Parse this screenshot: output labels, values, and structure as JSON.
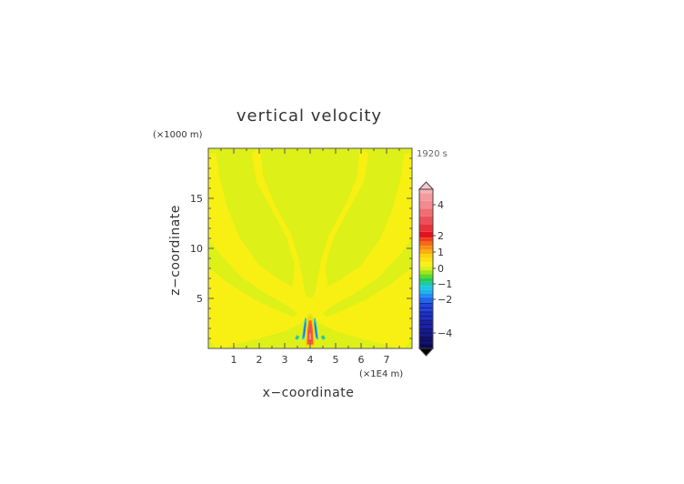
{
  "chart_data": {
    "type": "heatmap",
    "title": "vertical velocity",
    "xlabel": "x−coordinate",
    "ylabel": "z−coordinate",
    "x_unit": "(×1E4 m)",
    "y_unit": "(×1000 m)",
    "time_label": "1920 s",
    "xlim": [
      0,
      8
    ],
    "ylim": [
      0,
      20
    ],
    "x_ticks": [
      "1",
      "2",
      "3",
      "4",
      "5",
      "6",
      "7"
    ],
    "y_ticks": [
      "5",
      "10",
      "15"
    ],
    "grid": false,
    "colorbar": {
      "placement": "right",
      "labels": [
        "4",
        "2",
        "1",
        "0",
        "−1",
        "−2",
        "−4"
      ],
      "levels": [
        {
          "value": 5.0,
          "color": "#f7b0b4"
        },
        {
          "value": 4.5,
          "color": "#f4999d"
        },
        {
          "value": 4.0,
          "color": "#f48a8f"
        },
        {
          "value": 3.5,
          "color": "#f06d72"
        },
        {
          "value": 3.0,
          "color": "#ec5056"
        },
        {
          "value": 2.5,
          "color": "#e8323a"
        },
        {
          "value": 2.0,
          "color": "#e4121c"
        },
        {
          "value": 1.75,
          "color": "#ef3f1a"
        },
        {
          "value": 1.5,
          "color": "#f66a12"
        },
        {
          "value": 1.25,
          "color": "#f88e10"
        },
        {
          "value": 1.0,
          "color": "#fbb00a"
        },
        {
          "value": 0.75,
          "color": "#fdd10a"
        },
        {
          "value": 0.5,
          "color": "#fde30d"
        },
        {
          "value": 0.25,
          "color": "#f8f012"
        },
        {
          "value": 0.0,
          "color": "#ddf018"
        },
        {
          "value": -0.25,
          "color": "#9fe61c"
        },
        {
          "value": -0.5,
          "color": "#5cd926"
        },
        {
          "value": -0.75,
          "color": "#22cc55"
        },
        {
          "value": -1.0,
          "color": "#1ec8aa"
        },
        {
          "value": -1.25,
          "color": "#1ec6e0"
        },
        {
          "value": -1.5,
          "color": "#1ab4ee"
        },
        {
          "value": -1.75,
          "color": "#1a8fee"
        },
        {
          "value": -2.0,
          "color": "#2266ee"
        },
        {
          "value": -2.5,
          "color": "#2244dc"
        },
        {
          "value": -3.0,
          "color": "#1e30c0"
        },
        {
          "value": -3.5,
          "color": "#1c22a4"
        },
        {
          "value": -4.0,
          "color": "#181c88"
        },
        {
          "value": -4.5,
          "color": "#12126c"
        },
        {
          "value": -5.0,
          "color": "#0a0a50"
        }
      ]
    },
    "background_value": 0.0,
    "regions": [
      {
        "value": 0.25,
        "polygon": [
          [
            0.0,
            20.0
          ],
          [
            0.0,
            0.0
          ],
          [
            0.5,
            0.0
          ],
          [
            1.0,
            0.35
          ],
          [
            2.0,
            1.0
          ],
          [
            3.0,
            1.7
          ],
          [
            3.7,
            2.6
          ],
          [
            3.95,
            3.5
          ],
          [
            4.05,
            3.5
          ],
          [
            4.3,
            2.6
          ],
          [
            5.0,
            1.7
          ],
          [
            6.0,
            1.0
          ],
          [
            7.0,
            0.35
          ],
          [
            7.5,
            0.0
          ],
          [
            8.0,
            0.0
          ],
          [
            8.0,
            20.0
          ]
        ]
      },
      {
        "value": 0.0,
        "polygon": [
          [
            0.0,
            19.5
          ],
          [
            0.3,
            19.5
          ],
          [
            0.45,
            17.0
          ],
          [
            0.75,
            14.0
          ],
          [
            1.25,
            11.0
          ],
          [
            2.0,
            8.3
          ],
          [
            2.9,
            6.7
          ],
          [
            3.3,
            6.2
          ],
          [
            3.4,
            8.2
          ],
          [
            3.1,
            11.0
          ],
          [
            2.5,
            13.8
          ],
          [
            1.9,
            16.6
          ],
          [
            1.7,
            19.5
          ],
          [
            2.0,
            20.0
          ],
          [
            0.0,
            20.0
          ]
        ]
      },
      {
        "value": 0.0,
        "polygon": [
          [
            2.05,
            20.0
          ],
          [
            2.15,
            17.2
          ],
          [
            2.6,
            14.4
          ],
          [
            3.25,
            11.4
          ],
          [
            3.55,
            9.0
          ],
          [
            3.7,
            7.0
          ],
          [
            3.8,
            5.6
          ],
          [
            3.9,
            5.1
          ],
          [
            4.1,
            5.1
          ],
          [
            4.2,
            5.6
          ],
          [
            4.3,
            7.0
          ],
          [
            4.45,
            9.0
          ],
          [
            4.75,
            11.4
          ],
          [
            5.4,
            14.4
          ],
          [
            5.85,
            17.2
          ],
          [
            5.95,
            20.0
          ]
        ]
      },
      {
        "value": 0.0,
        "polygon": [
          [
            8.0,
            19.5
          ],
          [
            7.7,
            19.5
          ],
          [
            7.55,
            17.0
          ],
          [
            7.25,
            14.0
          ],
          [
            6.75,
            11.0
          ],
          [
            6.0,
            8.3
          ],
          [
            5.1,
            6.7
          ],
          [
            4.7,
            6.2
          ],
          [
            4.6,
            8.2
          ],
          [
            4.9,
            11.0
          ],
          [
            5.5,
            13.8
          ],
          [
            6.1,
            16.6
          ],
          [
            6.3,
            19.5
          ],
          [
            6.0,
            20.0
          ],
          [
            8.0,
            20.0
          ]
        ]
      },
      {
        "value": 0.0,
        "polygon": [
          [
            0.0,
            8.1
          ],
          [
            0.8,
            6.5
          ],
          [
            1.8,
            4.9
          ],
          [
            2.8,
            3.7
          ],
          [
            3.35,
            3.15
          ],
          [
            3.5,
            3.5
          ],
          [
            3.1,
            4.3
          ],
          [
            2.3,
            5.4
          ],
          [
            1.3,
            7.1
          ],
          [
            0.4,
            9.6
          ],
          [
            0.0,
            11.0
          ]
        ]
      },
      {
        "value": 0.0,
        "polygon": [
          [
            8.0,
            8.1
          ],
          [
            7.2,
            6.5
          ],
          [
            6.2,
            4.9
          ],
          [
            5.2,
            3.7
          ],
          [
            4.65,
            3.15
          ],
          [
            4.5,
            3.5
          ],
          [
            4.9,
            4.3
          ],
          [
            5.7,
            5.4
          ],
          [
            6.7,
            7.1
          ],
          [
            7.6,
            9.6
          ],
          [
            8.0,
            11.0
          ]
        ]
      },
      {
        "value": 0.0,
        "polygon": [
          [
            0.3,
            0.0
          ],
          [
            0.0,
            1.0
          ],
          [
            0.0,
            0.0
          ]
        ]
      },
      {
        "value": 0.0,
        "polygon": [
          [
            7.7,
            0.0
          ],
          [
            8.0,
            1.0
          ],
          [
            8.0,
            0.0
          ]
        ]
      },
      {
        "value": 0.75,
        "polygon": [
          [
            3.82,
            0.2
          ],
          [
            3.85,
            2.1
          ],
          [
            3.9,
            3.0
          ],
          [
            3.97,
            3.3
          ],
          [
            4.03,
            3.3
          ],
          [
            4.1,
            3.0
          ],
          [
            4.15,
            2.1
          ],
          [
            4.18,
            0.2
          ]
        ]
      },
      {
        "value": 1.5,
        "polygon": [
          [
            3.87,
            0.4
          ],
          [
            3.9,
            1.9
          ],
          [
            3.95,
            2.8
          ],
          [
            4.05,
            2.8
          ],
          [
            4.1,
            1.9
          ],
          [
            4.13,
            0.4
          ]
        ]
      },
      {
        "value": 3.0,
        "polygon": [
          [
            3.91,
            0.6
          ],
          [
            3.93,
            1.6
          ],
          [
            3.97,
            2.4
          ],
          [
            4.03,
            2.4
          ],
          [
            4.07,
            1.6
          ],
          [
            4.09,
            0.6
          ]
        ]
      },
      {
        "value": 4.0,
        "polygon": [
          [
            3.95,
            0.9
          ],
          [
            3.97,
            1.5
          ],
          [
            4.03,
            1.5
          ],
          [
            4.05,
            0.9
          ]
        ]
      },
      {
        "value": -1.25,
        "polygon": [
          [
            3.68,
            0.9
          ],
          [
            3.73,
            2.0
          ],
          [
            3.8,
            3.1
          ],
          [
            3.86,
            2.9
          ],
          [
            3.82,
            1.8
          ],
          [
            3.77,
            0.95
          ]
        ]
      },
      {
        "value": -1.25,
        "polygon": [
          [
            4.32,
            0.9
          ],
          [
            4.27,
            2.0
          ],
          [
            4.2,
            3.1
          ],
          [
            4.14,
            2.9
          ],
          [
            4.18,
            1.8
          ],
          [
            4.23,
            0.95
          ]
        ]
      },
      {
        "value": -2.0,
        "polygon": [
          [
            3.72,
            1.1
          ],
          [
            3.76,
            1.9
          ],
          [
            3.81,
            2.7
          ],
          [
            3.84,
            2.5
          ],
          [
            3.8,
            1.7
          ],
          [
            3.77,
            1.15
          ]
        ]
      },
      {
        "value": -2.0,
        "polygon": [
          [
            4.28,
            1.1
          ],
          [
            4.24,
            1.9
          ],
          [
            4.19,
            2.7
          ],
          [
            4.16,
            2.5
          ],
          [
            4.2,
            1.7
          ],
          [
            4.23,
            1.15
          ]
        ]
      },
      {
        "value": -1.0,
        "polygon": [
          [
            3.4,
            1.0
          ],
          [
            3.48,
            1.35
          ],
          [
            3.58,
            1.15
          ],
          [
            3.5,
            0.85
          ]
        ]
      },
      {
        "value": -1.0,
        "polygon": [
          [
            4.6,
            1.0
          ],
          [
            4.52,
            1.35
          ],
          [
            4.42,
            1.15
          ],
          [
            4.5,
            0.85
          ]
        ]
      }
    ]
  }
}
